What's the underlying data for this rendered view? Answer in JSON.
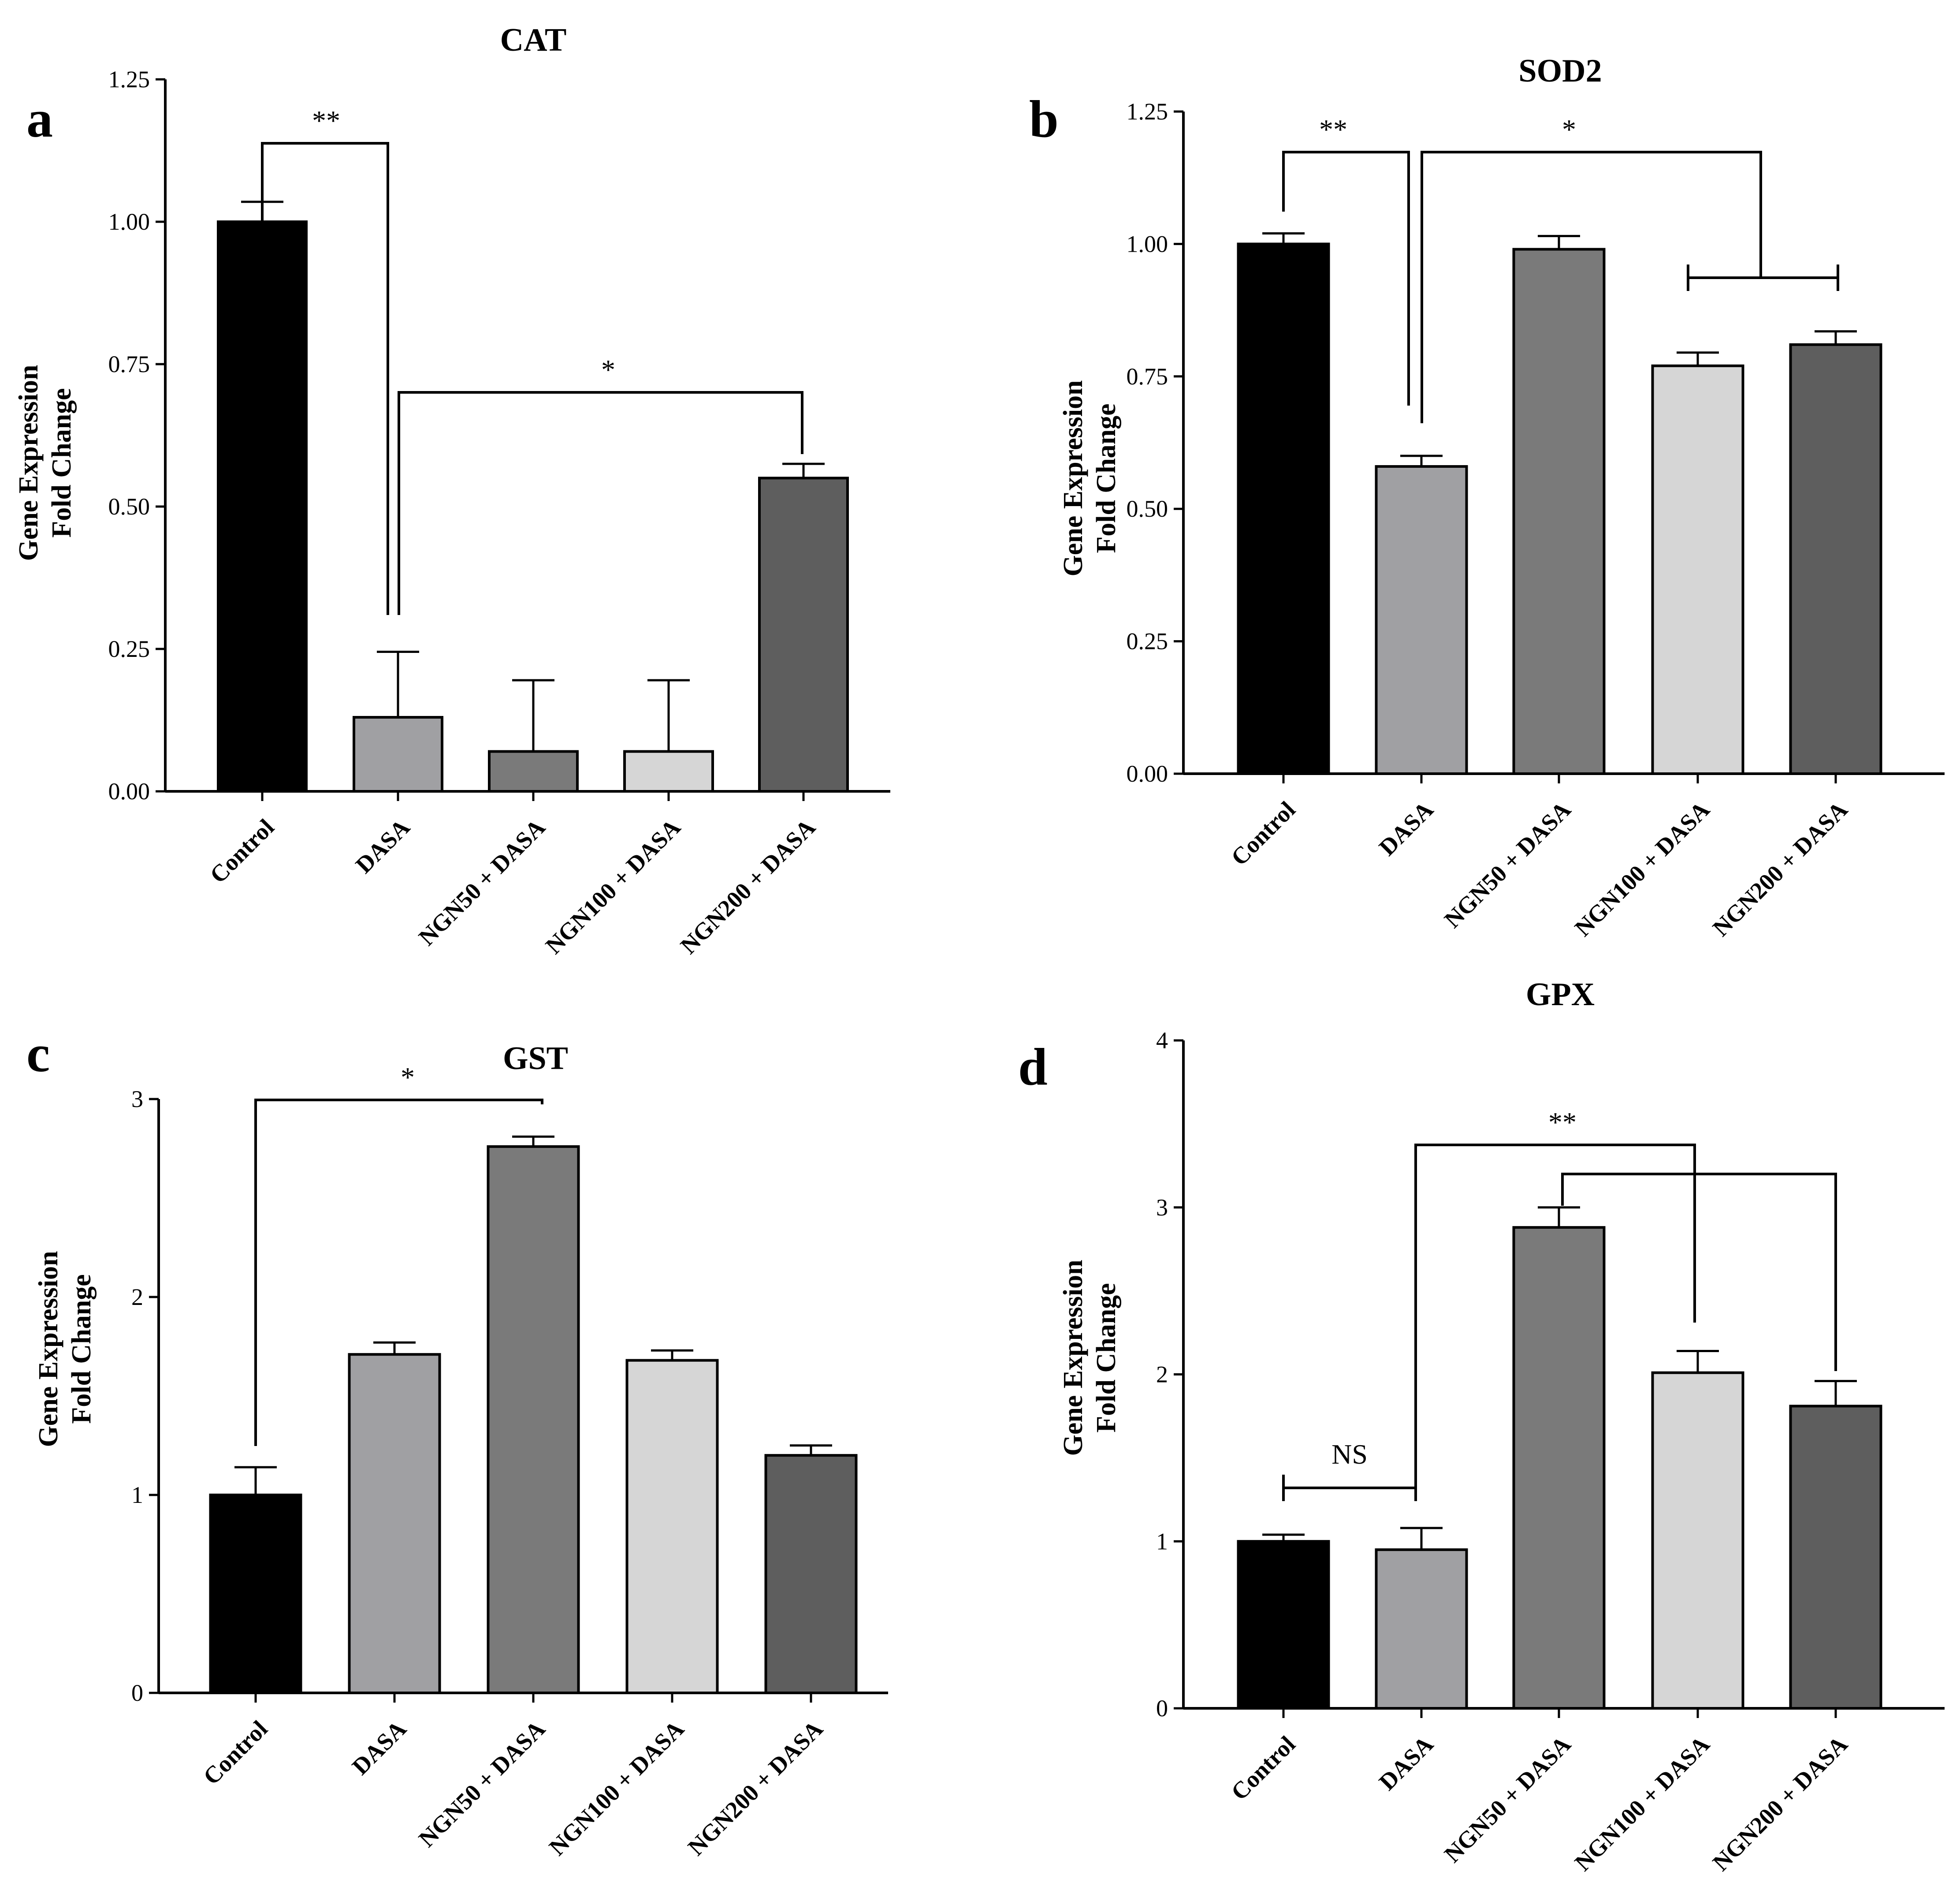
{
  "chart_data": [
    {
      "panel": "a",
      "type": "bar",
      "title": "CAT",
      "ylabel": [
        "Gene Expression",
        "Fold Change"
      ],
      "xlabel": "",
      "categories": [
        "Control",
        "DASA",
        "NGN50 + DASA",
        "NGN100 + DASA",
        "NGN200 + DASA"
      ],
      "values": [
        1.0,
        0.13,
        0.07,
        0.07,
        0.55
      ],
      "errors": [
        0.035,
        0.115,
        0.125,
        0.125,
        0.025
      ],
      "ylim": [
        0,
        1.25
      ],
      "yticks": [
        0,
        0.25,
        0.5,
        0.75,
        1.0,
        1.25
      ],
      "ytick_labels": [
        "0.00",
        "0.25",
        "0.50",
        "0.75",
        "1.00",
        "1.25"
      ],
      "annotations": [
        {
          "label": "**",
          "from": "Control",
          "to": "DASA"
        },
        {
          "label": "*",
          "from": "DASA",
          "to": "NGN200 + DASA"
        }
      ]
    },
    {
      "panel": "b",
      "type": "bar",
      "title": "SOD2",
      "ylabel": [
        "Gene Expression",
        "Fold Change"
      ],
      "xlabel": "",
      "categories": [
        "Control",
        "DASA",
        "NGN50 + DASA",
        "NGN100 + DASA",
        "NGN200 + DASA"
      ],
      "values": [
        1.0,
        0.58,
        0.99,
        0.77,
        0.81
      ],
      "errors": [
        0.02,
        0.02,
        0.025,
        0.025,
        0.025
      ],
      "ylim": [
        0,
        1.25
      ],
      "yticks": [
        0,
        0.25,
        0.5,
        0.75,
        1.0,
        1.25
      ],
      "ytick_labels": [
        "0.00",
        "0.25",
        "0.50",
        "0.75",
        "1.00",
        "1.25"
      ],
      "annotations": [
        {
          "label": "**",
          "from": "Control",
          "to": "DASA"
        },
        {
          "label": "*",
          "from": "DASA",
          "to": "NGN100 + DASA / NGN200 + DASA"
        }
      ]
    },
    {
      "panel": "c",
      "type": "bar",
      "title": "GST",
      "ylabel": [
        "Gene Expression",
        "Fold Change"
      ],
      "xlabel": "",
      "categories": [
        "Control",
        "DASA",
        "NGN50 + DASA",
        "NGN100 + DASA",
        "NGN200 + DASA"
      ],
      "values": [
        1.0,
        1.71,
        2.76,
        1.68,
        1.2
      ],
      "errors": [
        0.14,
        0.06,
        0.05,
        0.05,
        0.05
      ],
      "ylim": [
        0,
        3
      ],
      "yticks": [
        0,
        1,
        2,
        3
      ],
      "ytick_labels": [
        "0",
        "1",
        "2",
        "3"
      ],
      "annotations": [
        {
          "label": "*",
          "from": "Control",
          "to": "NGN50 + DASA"
        }
      ]
    },
    {
      "panel": "d",
      "type": "bar",
      "title": "GPX",
      "ylabel": [
        "Gene Expression",
        "Fold Change"
      ],
      "xlabel": "",
      "categories": [
        "Control",
        "DASA",
        "NGN50 + DASA",
        "NGN100 + DASA",
        "NGN200 + DASA"
      ],
      "values": [
        1.0,
        0.95,
        2.88,
        2.01,
        1.81
      ],
      "errors": [
        0.04,
        0.13,
        0.12,
        0.13,
        0.15
      ],
      "ylim": [
        0,
        4
      ],
      "yticks": [
        0,
        1,
        2,
        3,
        4
      ],
      "ytick_labels": [
        "0",
        "1",
        "2",
        "3",
        "4"
      ],
      "annotations": [
        {
          "label": "NS",
          "from": "Control",
          "to": "DASA"
        },
        {
          "label": "**",
          "from": "DASA",
          "to": "NGN100 + DASA"
        },
        {
          "label": "**",
          "from": "NGN50 + DASA",
          "to": "NGN200 + DASA"
        }
      ]
    }
  ],
  "bar_colors": [
    "#000000",
    "#a0a0a3",
    "#7a7a7a",
    "#d6d6d6",
    "#5e5e5e"
  ]
}
